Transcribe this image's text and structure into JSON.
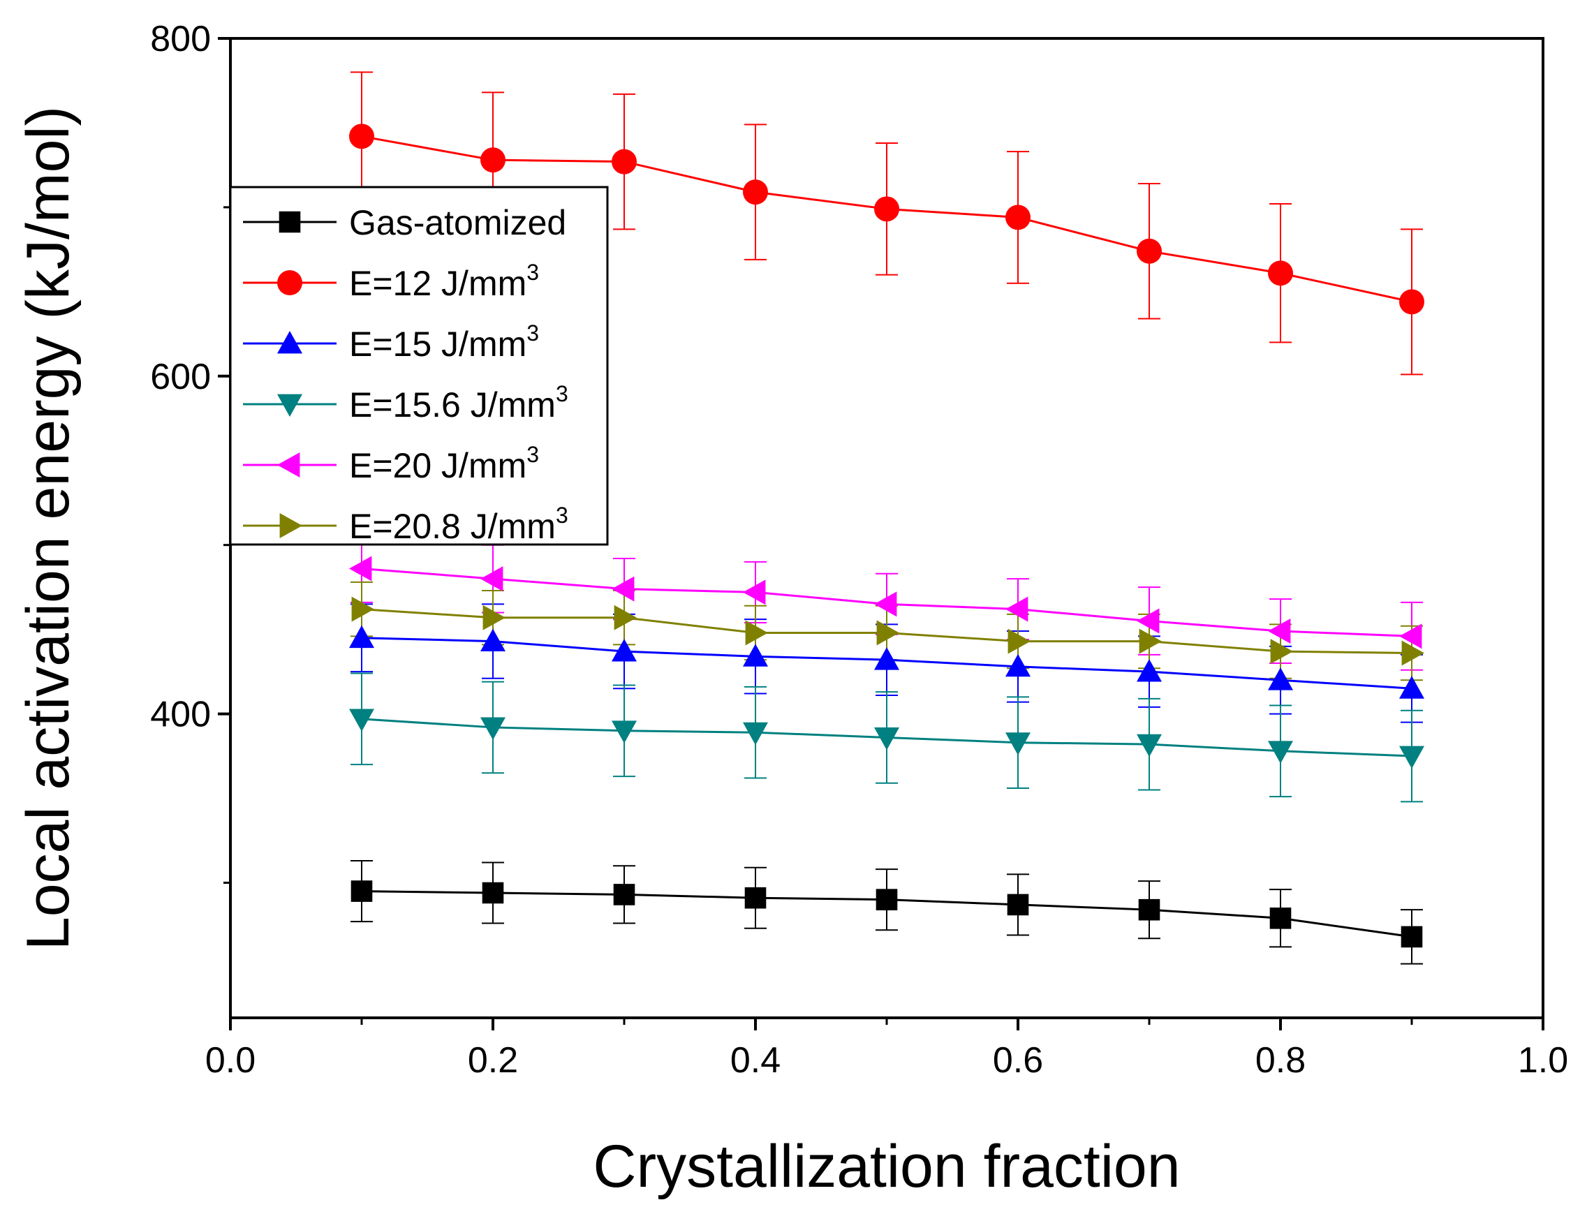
{
  "chart_data": {
    "type": "line",
    "xlabel": "Crystallization fraction",
    "ylabel": "Local activation energy (kJ/mol)",
    "xlim": [
      0.0,
      1.0
    ],
    "ylim": [
      220,
      800
    ],
    "xticks": [
      0.0,
      0.2,
      0.4,
      0.6,
      0.8,
      1.0
    ],
    "xtick_labels": [
      "0.0",
      "0.2",
      "0.4",
      "0.6",
      "0.8",
      "1.0"
    ],
    "yticks": [
      400,
      600,
      800
    ],
    "ytick_labels": [
      "400",
      "600",
      "800"
    ],
    "legend_position": "upper-left",
    "x": [
      0.1,
      0.2,
      0.3,
      0.4,
      0.5,
      0.6,
      0.7,
      0.8,
      0.9
    ],
    "series": [
      {
        "name": "Gas-atomized",
        "legend_base": "Gas-atomized",
        "legend_sup": "",
        "color": "#000000",
        "marker": "square",
        "values": [
          295,
          294,
          293,
          291,
          290,
          287,
          284,
          279,
          268
        ],
        "errors": [
          18,
          18,
          17,
          18,
          18,
          18,
          17,
          17,
          16
        ]
      },
      {
        "name": "E=12 J/mm3",
        "legend_base": "E=12 J/mm",
        "legend_sup": "3",
        "color": "#ff0000",
        "marker": "circle",
        "values": [
          742,
          728,
          727,
          709,
          699,
          694,
          674,
          661,
          644
        ],
        "errors": [
          38,
          40,
          40,
          40,
          39,
          39,
          40,
          41,
          43
        ]
      },
      {
        "name": "E=15 J/mm3",
        "legend_base": "E=15 J/mm",
        "legend_sup": "3",
        "color": "#0000ff",
        "marker": "triangle-up",
        "values": [
          445,
          443,
          437,
          434,
          432,
          428,
          425,
          420,
          415
        ],
        "errors": [
          20,
          22,
          22,
          22,
          21,
          21,
          21,
          20,
          20
        ]
      },
      {
        "name": "E=15.6 J/mm3",
        "legend_base": "E=15.6 J/mm",
        "legend_sup": "3",
        "color": "#008080",
        "marker": "triangle-down",
        "values": [
          397,
          392,
          390,
          389,
          386,
          383,
          382,
          378,
          375
        ],
        "errors": [
          27,
          27,
          27,
          27,
          27,
          27,
          27,
          27,
          27
        ]
      },
      {
        "name": "E=20 J/mm3",
        "legend_base": "E=20 J/mm",
        "legend_sup": "3",
        "color": "#ff00ff",
        "marker": "triangle-left",
        "values": [
          486,
          480,
          474,
          472,
          465,
          462,
          455,
          449,
          446
        ],
        "errors": [
          20,
          20,
          18,
          18,
          18,
          18,
          20,
          19,
          20
        ]
      },
      {
        "name": "E=20.8 J/mm3",
        "legend_base": "E=20.8 J/mm",
        "legend_sup": "3",
        "color": "#808000",
        "marker": "triangle-right",
        "values": [
          462,
          457,
          457,
          448,
          448,
          443,
          443,
          437,
          436
        ],
        "errors": [
          16,
          16,
          16,
          16,
          16,
          16,
          16,
          16,
          16
        ]
      }
    ]
  }
}
